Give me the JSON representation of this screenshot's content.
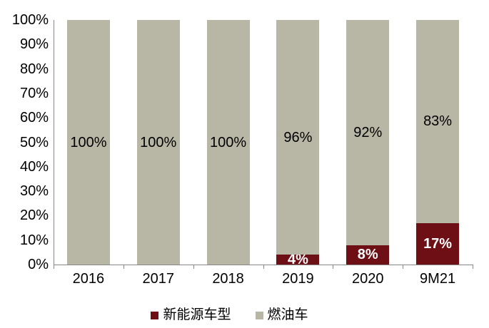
{
  "chart_data": {
    "type": "bar",
    "stacked": true,
    "percent_stacked": true,
    "title": "",
    "xlabel": "",
    "ylabel": "",
    "categories": [
      "2016",
      "2017",
      "2018",
      "2019",
      "2020",
      "9M21"
    ],
    "series": [
      {
        "name": "新能源车型",
        "color": "#6E0F15",
        "values": [
          0,
          0,
          0,
          4,
          8,
          17
        ],
        "data_labels": [
          "",
          "",
          "",
          "4%",
          "8%",
          "17%"
        ],
        "label_color": "#ffffff",
        "label_bold": true
      },
      {
        "name": "燃油车",
        "color": "#B8B6A5",
        "values": [
          100,
          100,
          100,
          96,
          92,
          83
        ],
        "data_labels": [
          "100%",
          "100%",
          "100%",
          "96%",
          "92%",
          "83%"
        ],
        "label_color": "#000000",
        "label_bold": false
      }
    ],
    "ylim": [
      0,
      100
    ],
    "y_ticks": [
      "100%",
      "90%",
      "80%",
      "70%",
      "60%",
      "50%",
      "40%",
      "30%",
      "20%",
      "10%",
      "0%"
    ],
    "grid": false,
    "legend_position": "bottom",
    "axis_color": "#878787",
    "background_color": "#ffffff",
    "text_color": "#000000"
  }
}
